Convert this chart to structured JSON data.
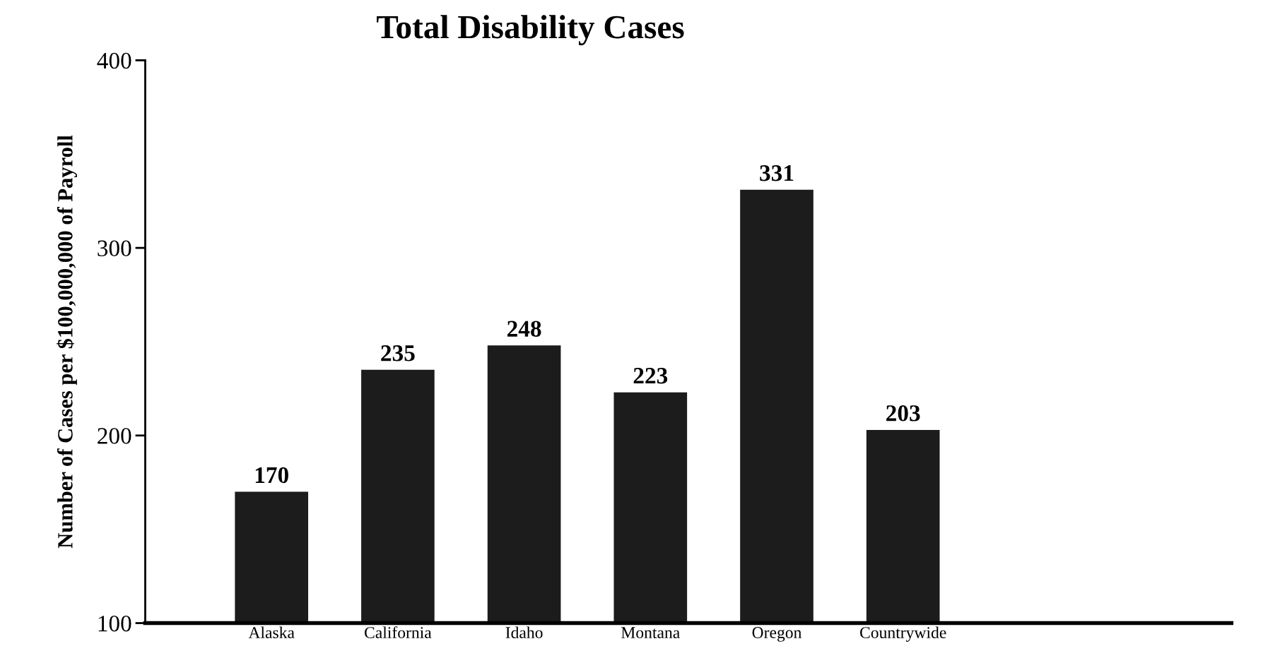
{
  "chart_data": {
    "type": "bar",
    "title": "Total Disability Cases",
    "ylabel": "Number of Cases per $100,000,000 of Payroll",
    "categories": [
      "Alaska",
      "California",
      "Idaho",
      "Montana",
      "Oregon",
      "Countrywide"
    ],
    "values": [
      170,
      235,
      248,
      223,
      331,
      203
    ],
    "color": "#1c1c1c",
    "ylim": [
      100,
      400
    ],
    "yticks": [
      100,
      200,
      300,
      400
    ],
    "data_labels": true,
    "grid": false,
    "legend": false
  }
}
